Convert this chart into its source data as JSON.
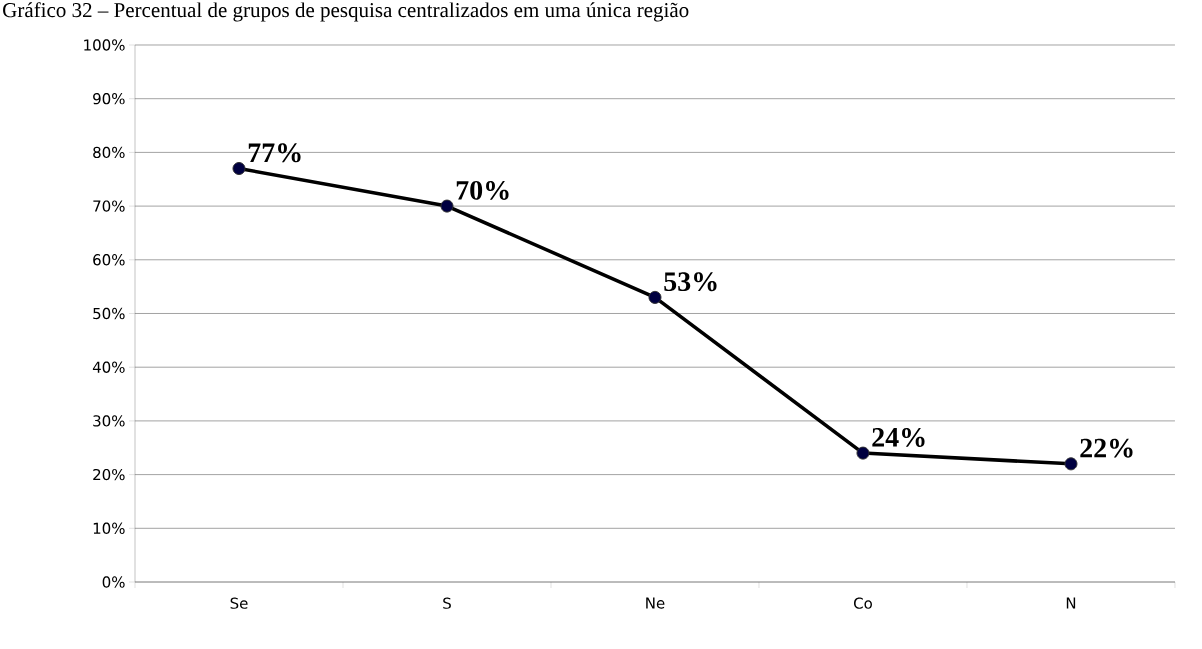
{
  "chart_data": {
    "type": "line",
    "title": "Gráfico 32 – Percentual de grupos de pesquisa centralizados em uma única região",
    "categories": [
      "Se",
      "S",
      "Ne",
      "Co",
      "N"
    ],
    "series": [
      {
        "color": "#000000",
        "values": [
          77,
          70,
          53,
          24,
          22
        ]
      }
    ],
    "value_labels": [
      "77%",
      "70%",
      "53%",
      "24%",
      "22%"
    ],
    "ylim": [
      0,
      100
    ],
    "yticks": [
      {
        "value": 0,
        "label": "0%"
      },
      {
        "value": 10,
        "label": "10%"
      },
      {
        "value": 20,
        "label": "20%"
      },
      {
        "value": 30,
        "label": "30%"
      },
      {
        "value": 40,
        "label": "40%"
      },
      {
        "value": 50,
        "label": "50%"
      },
      {
        "value": 60,
        "label": "60%"
      },
      {
        "value": 70,
        "label": "70%"
      },
      {
        "value": 80,
        "label": "80%"
      },
      {
        "value": 90,
        "label": "90%"
      },
      {
        "value": 100,
        "label": "100%"
      }
    ],
    "grid": "y",
    "marker": "circle",
    "line_style": "solid"
  }
}
